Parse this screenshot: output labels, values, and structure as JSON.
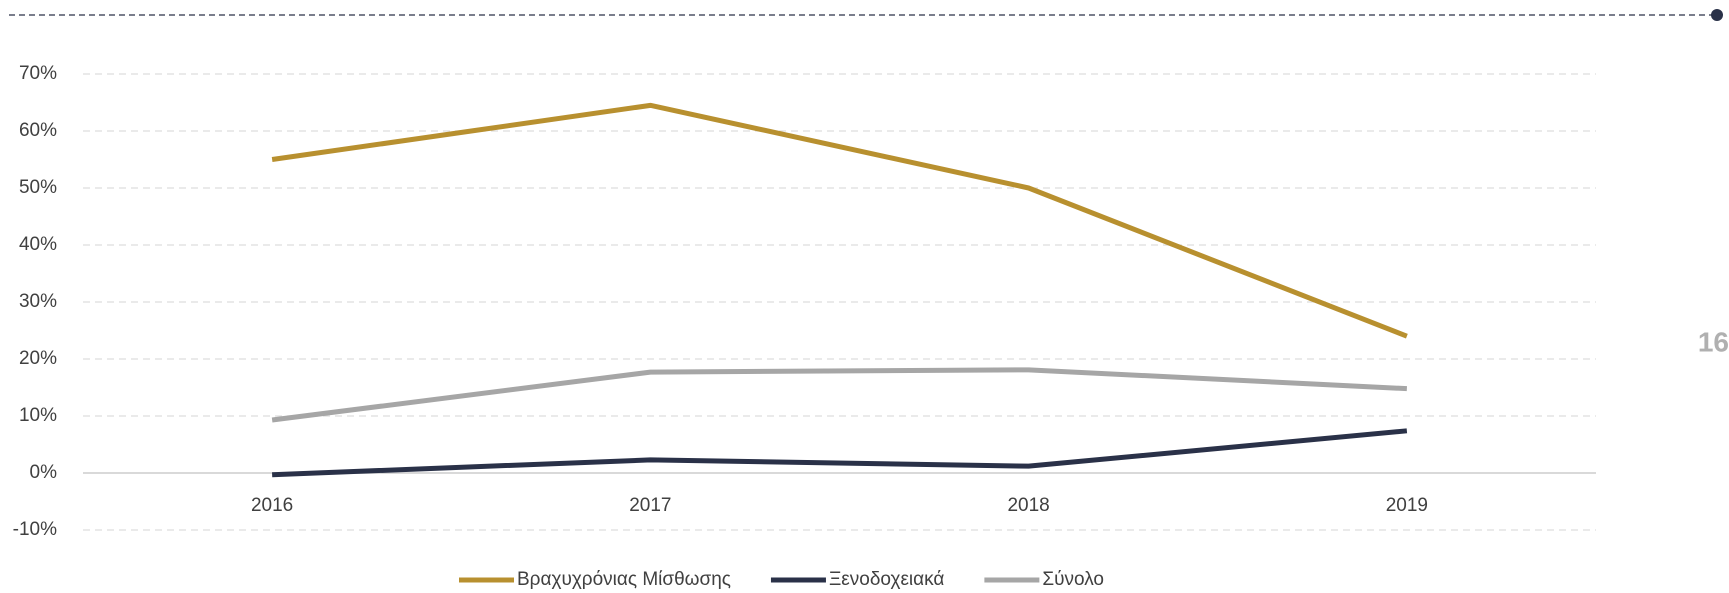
{
  "page_number": "16",
  "chart_data": {
    "type": "line",
    "categories": [
      "2016",
      "2017",
      "2018",
      "2019"
    ],
    "series": [
      {
        "name": "Βραχυχρόνιας Μίσθωσης",
        "color": "#b8902f",
        "values": [
          55,
          64.5,
          50,
          24
        ]
      },
      {
        "name": "Ξενοδοχειακά",
        "color": "#2a3148",
        "values": [
          -0.3,
          2.3,
          1.2,
          7.4
        ]
      },
      {
        "name": "Σύνολο",
        "color": "#a6a6a6",
        "values": [
          9.3,
          17.7,
          18.1,
          14.8
        ]
      }
    ],
    "ylim": [
      -10,
      70
    ],
    "yticks": [
      {
        "value": -10,
        "label": "-10%"
      },
      {
        "value": 0,
        "label": "0%"
      },
      {
        "value": 10,
        "label": "10%"
      },
      {
        "value": 20,
        "label": "20%"
      },
      {
        "value": 30,
        "label": "30%"
      },
      {
        "value": 40,
        "label": "40%"
      },
      {
        "value": 50,
        "label": "50%"
      },
      {
        "value": 60,
        "label": "60%"
      },
      {
        "value": 70,
        "label": "70%"
      }
    ],
    "grid": true,
    "legend": "bottom"
  }
}
